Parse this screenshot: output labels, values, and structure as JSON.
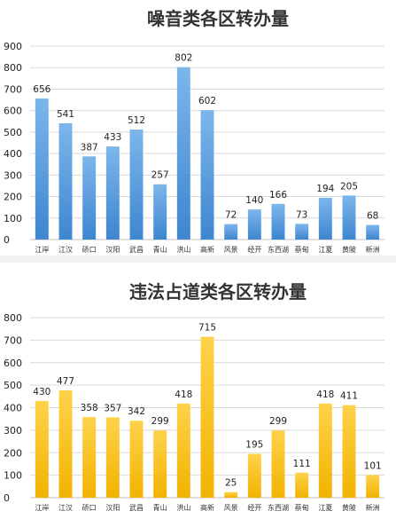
{
  "chart_data": [
    {
      "type": "bar",
      "title": "噪音类各区转办量",
      "categories": [
        "江岸",
        "江汉",
        "硚口",
        "汉阳",
        "武昌",
        "青山",
        "洪山",
        "高新",
        "风景",
        "经开",
        "东西湖",
        "蔡甸",
        "江夏",
        "黄陂",
        "新洲"
      ],
      "values": [
        656,
        541,
        387,
        433,
        512,
        257,
        802,
        602,
        72,
        140,
        166,
        73,
        194,
        205,
        68
      ],
      "ylim": [
        0,
        900
      ],
      "yticks": [
        0,
        100,
        200,
        300,
        400,
        500,
        600,
        700,
        800,
        900
      ],
      "grid": true,
      "legend": "none",
      "color": "#3d86d0",
      "color_light": "#7cb6ec"
    },
    {
      "type": "bar",
      "title": "违法占道类各区转办量",
      "categories": [
        "江岸",
        "江汉",
        "硚口",
        "汉阳",
        "武昌",
        "青山",
        "洪山",
        "高新",
        "风景",
        "经开",
        "东西湖",
        "蔡甸",
        "江夏",
        "黄陂",
        "新洲"
      ],
      "values": [
        430,
        477,
        358,
        357,
        342,
        299,
        418,
        715,
        25,
        195,
        299,
        111,
        418,
        411,
        101
      ],
      "ylim": [
        0,
        800
      ],
      "yticks": [
        0,
        100,
        200,
        300,
        400,
        500,
        600,
        700,
        800
      ],
      "grid": true,
      "legend": "none",
      "color": "#f2b300",
      "color_light": "#ffd24a"
    }
  ]
}
